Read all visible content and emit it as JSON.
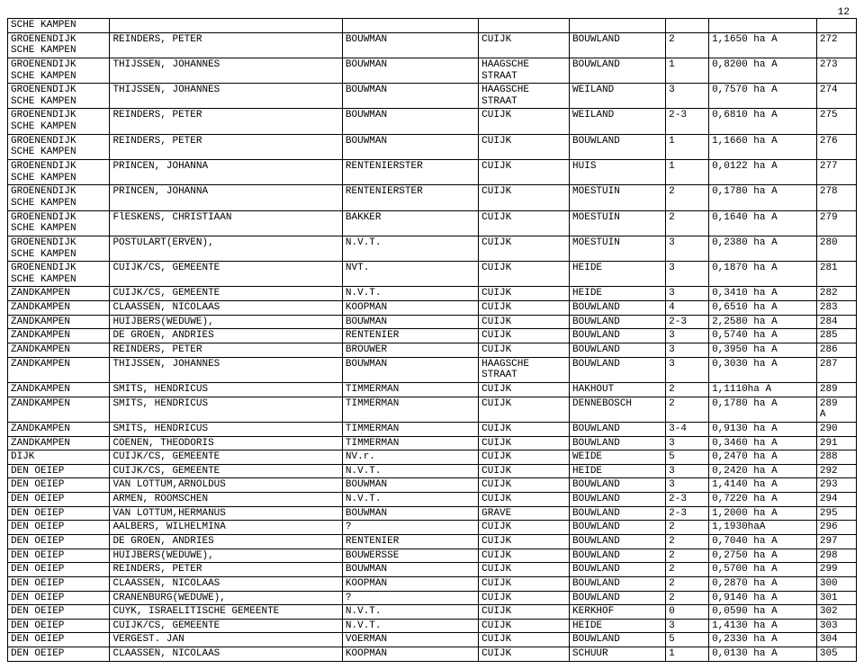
{
  "page_number": "12",
  "columns": [
    "c1",
    "c2",
    "c3",
    "c4",
    "c5",
    "c6",
    "c7",
    "c8"
  ],
  "rows": [
    [
      "SCHE KAMPEN",
      "",
      "",
      "",
      "",
      "",
      "",
      ""
    ],
    [
      "GROENENDIJK\nSCHE KAMPEN",
      "REINDERS, PETER",
      "BOUWMAN",
      "CUIJK",
      "BOUWLAND",
      "2",
      "1,1650 ha A",
      "272"
    ],
    [
      "GROENENDIJK\nSCHE KAMPEN",
      "THIJSSEN, JOHANNES",
      "BOUWMAN",
      "HAAGSCHE\nSTRAAT",
      "BOUWLAND",
      "1",
      "0,8200 ha A",
      "273"
    ],
    [
      "GROENENDIJK\nSCHE KAMPEN",
      "THIJSSEN, JOHANNES",
      "BOUWMAN",
      "HAAGSCHE\nSTRAAT",
      "WEILAND",
      "3",
      "0,7570 ha A",
      "274"
    ],
    [
      "GROENENDIJK\nSCHE KAMPEN",
      "REINDERS, PETER",
      "BOUWMAN",
      "CUIJK",
      "WEILAND",
      "2-3",
      "0,6810 ha A",
      "275"
    ],
    [
      "GROENENDIJK\nSCHE KAMPEN",
      "REINDERS, PETER",
      "BOUWMAN",
      "CUIJK",
      "BOUWLAND",
      "1",
      "1,1660 ha A",
      "276"
    ],
    [
      "GROENENDIJK\nSCHE KAMPEN",
      "PRINCEN, JOHANNA",
      "RENTENIERSTER",
      "CUIJK",
      "HUIS",
      "1",
      "0,0122 ha A",
      "277"
    ],
    [
      "GROENENDIJK\nSCHE KAMPEN",
      "PRINCEN, JOHANNA",
      "RENTENIERSTER",
      "CUIJK",
      "MOESTUIN",
      "2",
      "0,1780 ha A",
      "278"
    ],
    [
      "GROENENDIJK\nSCHE KAMPEN",
      "FlESKENS, CHRISTIAAN",
      "BAKKER",
      "CUIJK",
      "MOESTUIN",
      "2",
      "0,1640 ha A",
      "279"
    ],
    [
      "GROENENDIJK\nSCHE KAMPEN",
      "POSTULART(ERVEN),",
      "N.V.T.",
      "CUIJK",
      "MOESTUIN",
      "3",
      "0,2380 ha A",
      "280"
    ],
    [
      "GROENENDIJK\nSCHE KAMPEN",
      "CUIJK/CS, GEMEENTE",
      "NVT.",
      "CUIJK",
      "HEIDE",
      "3",
      "0,1870 ha A",
      "281"
    ],
    [
      "ZANDKAMPEN",
      "CUIJK/CS, GEMEENTE",
      "N.V.T.",
      "CUIJK",
      "HEIDE",
      "3",
      "0,3410 ha A",
      "282"
    ],
    [
      "ZANDKAMPEN",
      "CLAASSEN, NICOLAAS",
      "KOOPMAN",
      "CUIJK",
      "BOUWLAND",
      "4",
      "0,6510 ha A",
      "283"
    ],
    [
      "ZANDKAMPEN",
      "HUIJBERS(WEDUWE),",
      "BOUWMAN",
      "CUIJK",
      "BOUWLAND",
      "2-3",
      "2,2580 ha A",
      "284"
    ],
    [
      "ZANDKAMPEN",
      "DE GROEN, ANDRIES",
      "RENTENIER",
      "CUIJK",
      "BOUWLAND",
      "3",
      "0,5740 ha A",
      "285"
    ],
    [
      "ZANDKAMPEN",
      "REINDERS, PETER",
      "BROUWER",
      "CUIJK",
      "BOUWLAND",
      "3",
      "0,3950 ha A",
      "286"
    ],
    [
      "ZANDKAMPEN",
      "THIJSSEN, JOHANNES",
      "BOUWMAN",
      "HAAGSCHE\nSTRAAT",
      "BOUWLAND",
      "3",
      "0,3030 ha A",
      "287"
    ],
    [
      "ZANDKAMPEN",
      "SMITS, HENDRICUS",
      "TIMMERMAN",
      "CUIJK",
      "HAKHOUT",
      "2",
      "1,1110ha A",
      "289"
    ],
    [
      "ZANDKAMPEN",
      "SMITS, HENDRICUS",
      "TIMMERMAN",
      "CUIJK",
      "DENNEBOSCH",
      "2",
      "0,1780 ha A",
      "289\nA"
    ],
    [
      "ZANDKAMPEN",
      "SMITS, HENDRICUS",
      "TIMMERMAN",
      "CUIJK",
      "BOUWLAND",
      "3-4",
      "0,9130 ha A",
      "290"
    ],
    [
      "ZANDKAMPEN",
      "COENEN, THEODORIS",
      "TIMMERMAN",
      "CUIJK",
      "BOUWLAND",
      "3",
      "0,3460 ha A",
      "291"
    ],
    [
      "DIJK",
      "CUIJK/CS, GEMEENTE",
      "NV.r.",
      "CUIJK",
      "WEIDE",
      "5",
      "0,2470 ha A",
      "288"
    ],
    [
      "DEN OEIEP",
      "CUIJK/CS, GEMEENTE",
      "N.V.T.",
      "CUIJK",
      "HEIDE",
      "3",
      "0,2420 ha A",
      "292"
    ],
    [
      "DEN OEIEP",
      "VAN LOTTUM,ARNOLDUS",
      "BOUWMAN",
      "CUIJK",
      "BOUWLAND",
      "3",
      "1,4140 ha A",
      "293"
    ],
    [
      "DEN OEIEP",
      "ARMEN, ROOMSCHEN",
      "N.V.T.",
      "CUIJK",
      "BOUWLAND",
      "2-3",
      "0,7220 ha A",
      "294"
    ],
    [
      "DEN OEIEP",
      "VAN LOTTUM,HERMANUS",
      "BOUWMAN",
      "GRAVE",
      "BOUWLAND",
      "2-3",
      "1,2000 ha A",
      "295"
    ],
    [
      "DEN OEIEP",
      "AALBERS, WILHELMINA",
      "?",
      "CUIJK",
      "BOUWLAND",
      "2",
      "1,1930haA",
      "296"
    ],
    [
      "DEN OEIEP",
      "DE GROEN, ANDRIES",
      "RENTENIER",
      "CUIJK",
      "BOUWLAND",
      "2",
      "0,7040 ha A",
      "297"
    ],
    [
      "DEN OEIEP",
      "HUIJBERS(WEDUWE),",
      "BOUWERSSE",
      "CUIJK",
      "BOUWLAND",
      "2",
      "0,2750 ha A",
      "298"
    ],
    [
      "DEN OEIEP",
      "REINDERS, PETER",
      "BOUWMAN",
      "CUIJK",
      "BOUWLAND",
      "2",
      "0,5700 ha A",
      "299"
    ],
    [
      "DEN OEIEP",
      "CLAASSEN, NICOLAAS",
      "KOOPMAN",
      "CUIJK",
      "BOUWLAND",
      "2",
      "0,2870 ha A",
      "300"
    ],
    [
      "DEN OEIEP",
      "CRANENBURG(WEDUWE),",
      "?",
      "CUIJK",
      "BOUWLAND",
      "2",
      "0,9140 ha A",
      "301"
    ],
    [
      "DEN OEIEP",
      "CUYK, ISRAELITISCHE GEMEENTE",
      "N.V.T.",
      "CUIJK",
      "KERKHOF",
      "0",
      "0,0590 ha A",
      "302"
    ],
    [
      "DEN OEIEP",
      "CUIJK/CS, GEMEENTE",
      "N.V.T.",
      "CUIJK",
      "HEIDE",
      "3",
      "1,4130 ha A",
      "303"
    ],
    [
      "DEN OEIEP",
      "VERGEST. JAN",
      "VOERMAN",
      "CUIJK",
      "BOUWLAND",
      "5",
      "0,2330 ha A",
      "304"
    ],
    [
      "DEN OEIEP",
      "CLAASSEN, NICOLAAS",
      "KOOPMAN",
      "CUIJK",
      "SCHUUR",
      "1",
      "0,0130 ha A",
      "305"
    ]
  ]
}
